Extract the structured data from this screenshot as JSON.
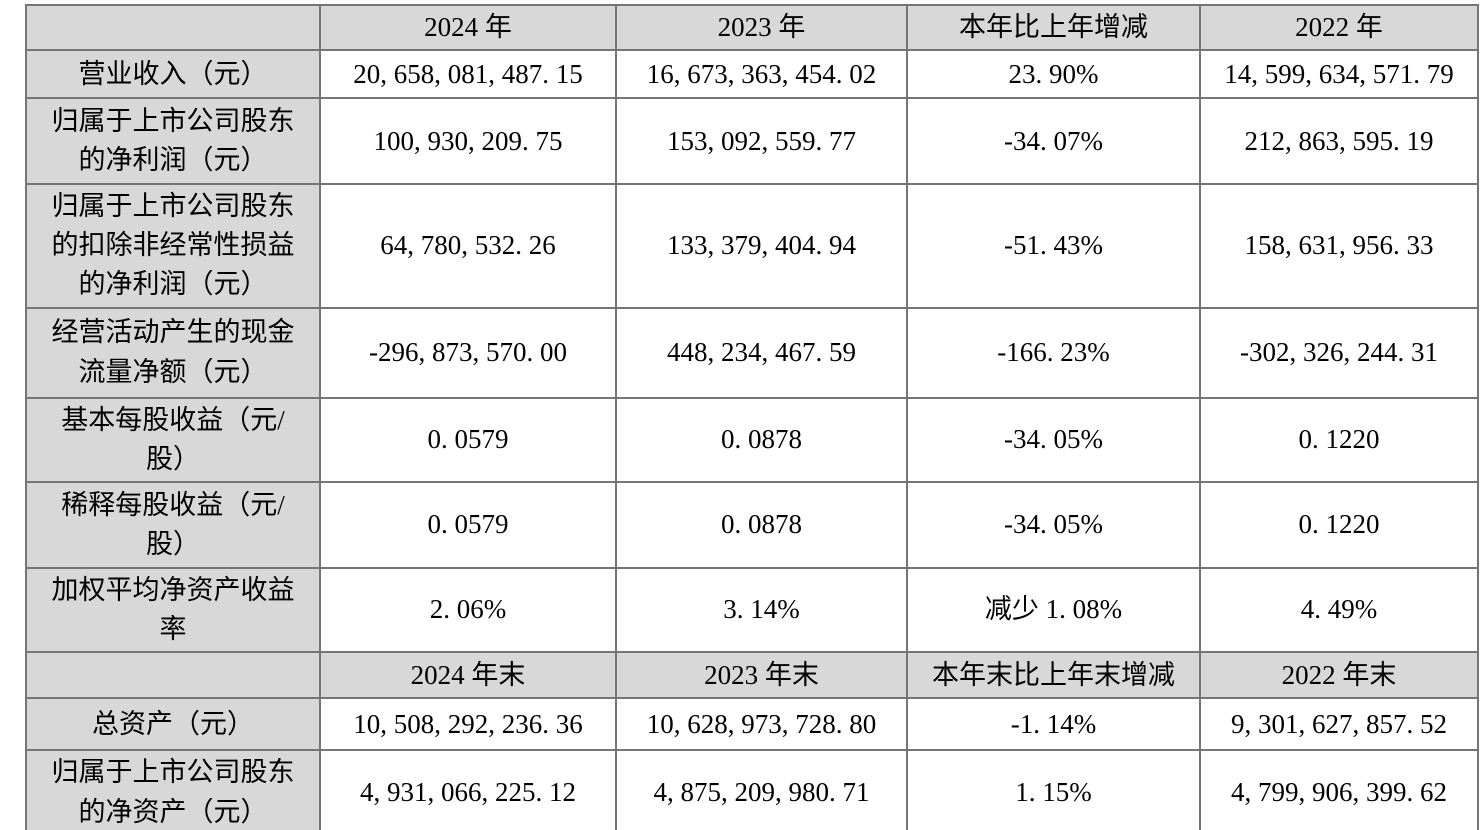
{
  "colors": {
    "header_bg": "#d8d8d8",
    "border": "#757575",
    "text": "#000000",
    "background": "#ffffff"
  },
  "chart_data": {
    "type": "table",
    "title": "",
    "rows": [
      {
        "kind": "colheader",
        "cells": [
          "",
          "2024 年",
          "2023 年",
          "本年比上年增减",
          "2022 年"
        ]
      },
      {
        "kind": "data",
        "cells": [
          "营业收入（元）",
          "20, 658, 081, 487. 15",
          "16, 673, 363, 454. 02",
          "23. 90%",
          "14, 599, 634, 571. 79"
        ]
      },
      {
        "kind": "data",
        "cells": [
          "归属于上市公司股东的净利润（元）",
          "100, 930, 209. 75",
          "153, 092, 559. 77",
          "-34. 07%",
          "212, 863, 595. 19"
        ]
      },
      {
        "kind": "data",
        "cells": [
          "归属于上市公司股东的扣除非经常性损益的净利润（元）",
          "64, 780, 532. 26",
          "133, 379, 404. 94",
          "-51. 43%",
          "158, 631, 956. 33"
        ]
      },
      {
        "kind": "data",
        "cells": [
          "经营活动产生的现金流量净额（元）",
          "-296, 873, 570. 00",
          "448, 234, 467. 59",
          "-166. 23%",
          "-302, 326, 244. 31"
        ]
      },
      {
        "kind": "data",
        "cells": [
          "基本每股收益（元/股）",
          "0. 0579",
          "0. 0878",
          "-34. 05%",
          "0. 1220"
        ]
      },
      {
        "kind": "data",
        "cells": [
          "稀释每股收益（元/股）",
          "0. 0579",
          "0. 0878",
          "-34. 05%",
          "0. 1220"
        ]
      },
      {
        "kind": "data",
        "cells": [
          "加权平均净资产收益率",
          "2. 06%",
          "3. 14%",
          "减少 1. 08%",
          "4. 49%"
        ]
      },
      {
        "kind": "colheader",
        "cells": [
          "",
          "2024 年末",
          "2023 年末",
          "本年末比上年末增减",
          "2022 年末"
        ]
      },
      {
        "kind": "data",
        "cells": [
          "总资产（元）",
          "10, 508, 292, 236. 36",
          "10, 628, 973, 728. 80",
          "-1. 14%",
          "9, 301, 627, 857. 52"
        ]
      },
      {
        "kind": "data",
        "cells": [
          "归属于上市公司股东的净资产（元）",
          "4, 931, 066, 225. 12",
          "4, 875, 209, 980. 71",
          "1. 15%",
          "4, 799, 906, 399. 62"
        ]
      }
    ]
  }
}
